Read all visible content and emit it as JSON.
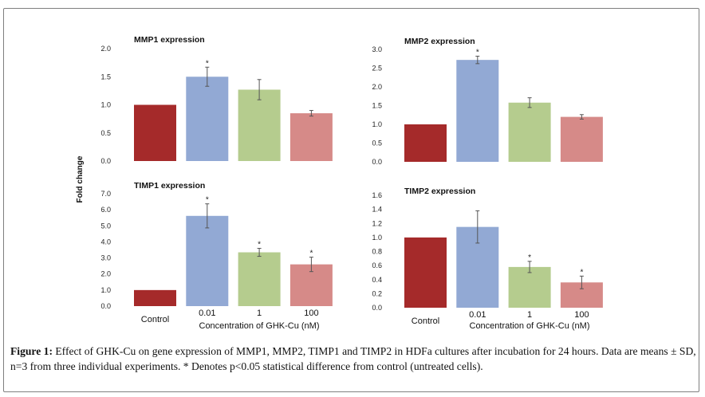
{
  "figure": {
    "ylabel": "Fold change",
    "xlabel": "Concentration of GHK-Cu (nM)",
    "caption_label": "Figure 1:",
    "caption_text": " Effect of GHK-Cu on gene expression of MMP1, MMP2, TIMP1 and TIMP2 in HDFa cultures after incubation for 24 hours. Data are means ± SD, n=3 from three individual experiments. * Denotes p<0.05 statistical difference from control (untreated cells)."
  },
  "colors": [
    "#a52a2a",
    "#92a9d4",
    "#b5cc8e",
    "#d68a88"
  ],
  "chart_data": [
    {
      "type": "bar",
      "title": "MMP1 expression",
      "categories": [
        "Control",
        "0.01",
        "1",
        "100"
      ],
      "values": [
        1.0,
        1.5,
        1.27,
        0.85
      ],
      "errors": [
        0,
        0.17,
        0.18,
        0.05
      ],
      "significant": [
        false,
        true,
        false,
        false
      ],
      "ylim": [
        0,
        2.0
      ],
      "yticks": [
        "0.0",
        "0.5",
        "1.0",
        "1.5",
        "2.0"
      ],
      "show_x_labels": false
    },
    {
      "type": "bar",
      "title": "MMP2 expression",
      "categories": [
        "Control",
        "0.01",
        "1",
        "100"
      ],
      "values": [
        1.0,
        2.72,
        1.58,
        1.2
      ],
      "errors": [
        0,
        0.1,
        0.13,
        0.06
      ],
      "significant": [
        false,
        true,
        false,
        false
      ],
      "ylim": [
        0,
        3.0
      ],
      "yticks": [
        "0.0",
        "0.5",
        "1.0",
        "1.5",
        "2.0",
        "2.5",
        "3.0"
      ],
      "show_x_labels": false
    },
    {
      "type": "bar",
      "title": "TIMP1 expression",
      "categories": [
        "Control",
        "0.01",
        "1",
        "100"
      ],
      "values": [
        1.0,
        5.62,
        3.35,
        2.6
      ],
      "errors": [
        0,
        0.75,
        0.25,
        0.45
      ],
      "significant": [
        false,
        true,
        true,
        true
      ],
      "ylim": [
        0,
        7.0
      ],
      "yticks": [
        "0.0",
        "1.0",
        "2.0",
        "3.0",
        "4.0",
        "5.0",
        "6.0",
        "7.0"
      ],
      "show_x_labels": true
    },
    {
      "type": "bar",
      "title": "TIMP2 expression",
      "categories": [
        "Control",
        "0.01",
        "1",
        "100"
      ],
      "values": [
        1.0,
        1.15,
        0.58,
        0.36
      ],
      "errors": [
        0,
        0.23,
        0.08,
        0.09
      ],
      "significant": [
        false,
        false,
        true,
        true
      ],
      "ylim": [
        0,
        1.6
      ],
      "yticks": [
        "0.0",
        "0.2",
        "0.4",
        "0.6",
        "0.8",
        "1.0",
        "1.2",
        "1.4",
        "1.6"
      ],
      "show_x_labels": true
    }
  ]
}
